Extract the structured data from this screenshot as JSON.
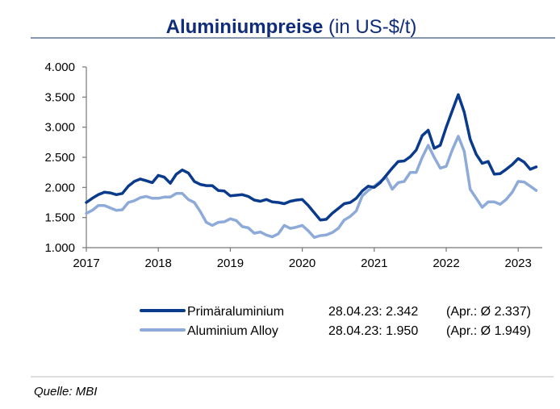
{
  "chart_data": {
    "type": "line",
    "title_bold": "Aluminiumpreise",
    "title_rest": " (in US-$/t)",
    "xlabel": "",
    "ylabel": "",
    "ylim": [
      1000,
      4000
    ],
    "yticks": [
      1000,
      1500,
      2000,
      2500,
      3000,
      3500,
      4000
    ],
    "ytick_labels": [
      "1.000",
      "1.500",
      "2.000",
      "2.500",
      "3.000",
      "3.500",
      "4.000"
    ],
    "xticks": [
      "2017",
      "2018",
      "2019",
      "2020",
      "2021",
      "2022",
      "2023"
    ],
    "x_start": "2017-01",
    "x_frequency": "monthly",
    "grid": false,
    "legend_placement": "bottom",
    "series": [
      {
        "name": "Primäraluminium",
        "color": "#0a3a8c",
        "note_date": "28.04.23: 2.342",
        "note_avg": "(Apr.: Ø 2.337)",
        "values": [
          1750,
          1820,
          1880,
          1920,
          1910,
          1880,
          1900,
          2020,
          2100,
          2140,
          2110,
          2080,
          2200,
          2170,
          2070,
          2220,
          2290,
          2240,
          2100,
          2050,
          2030,
          2030,
          1950,
          1940,
          1860,
          1870,
          1880,
          1850,
          1790,
          1770,
          1800,
          1760,
          1750,
          1730,
          1770,
          1790,
          1800,
          1700,
          1580,
          1460,
          1470,
          1570,
          1650,
          1730,
          1750,
          1820,
          1940,
          2020,
          2000,
          2080,
          2200,
          2320,
          2430,
          2440,
          2510,
          2620,
          2860,
          2950,
          2650,
          2700,
          3000,
          3270,
          3540,
          3250,
          2800,
          2550,
          2400,
          2430,
          2220,
          2230,
          2300,
          2380,
          2480,
          2420,
          2300,
          2340
        ]
      },
      {
        "name": "Aluminium Alloy",
        "color": "#8eaad8",
        "note_date": "28.04.23: 1.950",
        "note_avg": "(Apr.: Ø 1.949)",
        "values": [
          1570,
          1620,
          1700,
          1700,
          1660,
          1620,
          1630,
          1750,
          1780,
          1830,
          1850,
          1820,
          1820,
          1840,
          1840,
          1900,
          1900,
          1800,
          1750,
          1600,
          1420,
          1370,
          1420,
          1430,
          1480,
          1450,
          1350,
          1330,
          1240,
          1260,
          1210,
          1180,
          1230,
          1370,
          1320,
          1340,
          1370,
          1280,
          1170,
          1200,
          1210,
          1250,
          1320,
          1460,
          1520,
          1610,
          1860,
          1950,
          2020,
          2100,
          2170,
          1970,
          2080,
          2100,
          2250,
          2250,
          2500,
          2700,
          2500,
          2320,
          2350,
          2620,
          2850,
          2600,
          1970,
          1820,
          1670,
          1760,
          1760,
          1720,
          1800,
          1920,
          2100,
          2090,
          2020,
          1950
        ]
      }
    ]
  },
  "source": "Quelle: MBI"
}
